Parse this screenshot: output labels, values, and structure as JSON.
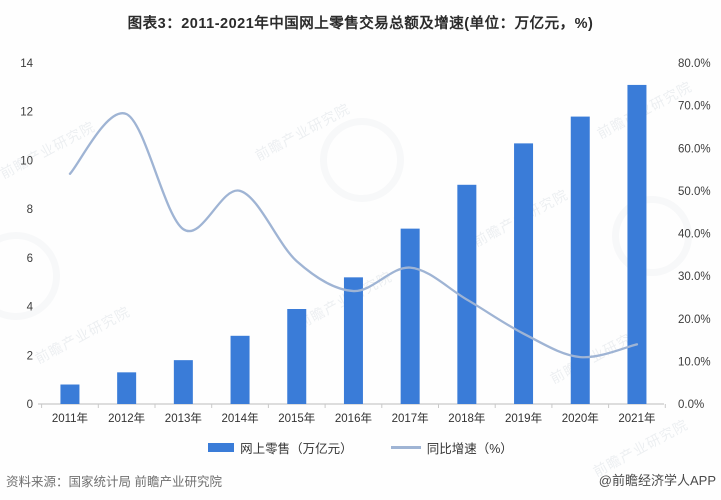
{
  "title": "图表3：2011-2021年中国网上零售交易总额及增速(单位：万亿元，%)",
  "chart_data": {
    "type": "combo",
    "categories": [
      "2011年",
      "2012年",
      "2013年",
      "2014年",
      "2015年",
      "2016年",
      "2017年",
      "2018年",
      "2019年",
      "2020年",
      "2021年"
    ],
    "series": [
      {
        "name": "网上零售（万亿元）",
        "type": "bar",
        "axis": "left",
        "values": [
          0.8,
          1.3,
          1.8,
          2.8,
          3.9,
          5.2,
          7.2,
          9.0,
          10.7,
          11.8,
          13.1
        ]
      },
      {
        "name": "同比增速（%）",
        "type": "line",
        "axis": "right",
        "values": [
          54,
          68,
          41,
          50,
          33.5,
          26.5,
          32,
          24.5,
          16.5,
          11,
          14
        ]
      }
    ],
    "left_axis": {
      "min": 0,
      "max": 14,
      "step": 2,
      "tick_labels": [
        "0",
        "2",
        "4",
        "6",
        "8",
        "10",
        "12",
        "14"
      ]
    },
    "right_axis": {
      "min": 0,
      "max": 80,
      "step": 10,
      "tick_labels": [
        "0.0%",
        "10.0%",
        "20.0%",
        "30.0%",
        "40.0%",
        "50.0%",
        "60.0%",
        "70.0%",
        "80.0%"
      ]
    },
    "grid": false,
    "legend_position": "bottom"
  },
  "legend": {
    "bar_label": "网上零售（万亿元）",
    "line_label": "同比增速（%）"
  },
  "footer": {
    "source": "资料来源：国家统计局 前瞻产业研究院",
    "credit": "@前瞻经济学人APP"
  },
  "watermark": {
    "text": "前瞻产业研究院"
  },
  "colors": {
    "bar": "#3a7cd8",
    "line": "#9fb4d4",
    "axis_line": "#c9c9c9",
    "axis_label": "#3d3d3d",
    "title_text": "#2b2b2b",
    "footer_text": "#6f6f6f"
  }
}
